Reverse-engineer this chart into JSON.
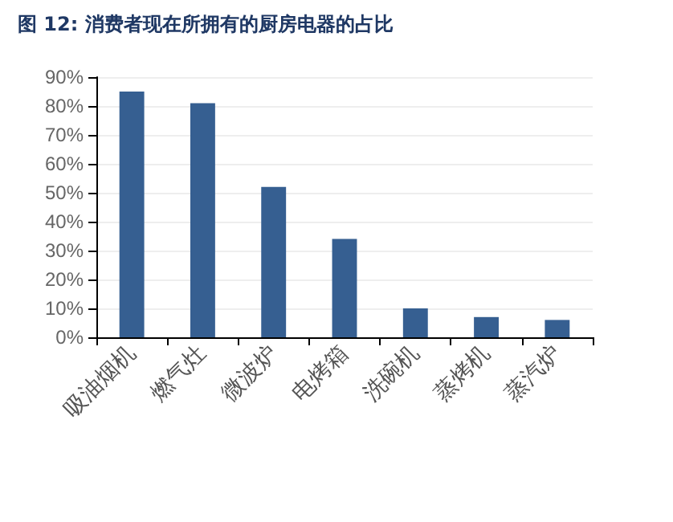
{
  "chart_data": {
    "type": "bar",
    "title": "图 12: 消费者现在所拥有的厨房电器的占比",
    "categories": [
      "吸油烟机",
      "燃气灶",
      "微波炉",
      "电烤箱",
      "洗碗机",
      "蒸烤机",
      "蒸汽炉"
    ],
    "values": [
      85,
      81,
      52,
      34,
      10,
      7,
      6
    ],
    "color": "#365f91",
    "ylim": [
      0,
      90
    ],
    "yticks": [
      {
        "value": 0,
        "label": "0%"
      },
      {
        "value": 10,
        "label": "10%"
      },
      {
        "value": 20,
        "label": "20%"
      },
      {
        "value": 30,
        "label": "30%"
      },
      {
        "value": 40,
        "label": "40%"
      },
      {
        "value": 50,
        "label": "50%"
      },
      {
        "value": 60,
        "label": "60%"
      },
      {
        "value": 70,
        "label": "70%"
      },
      {
        "value": 80,
        "label": "80%"
      },
      {
        "value": 90,
        "label": "90%"
      }
    ],
    "grid": "y"
  }
}
